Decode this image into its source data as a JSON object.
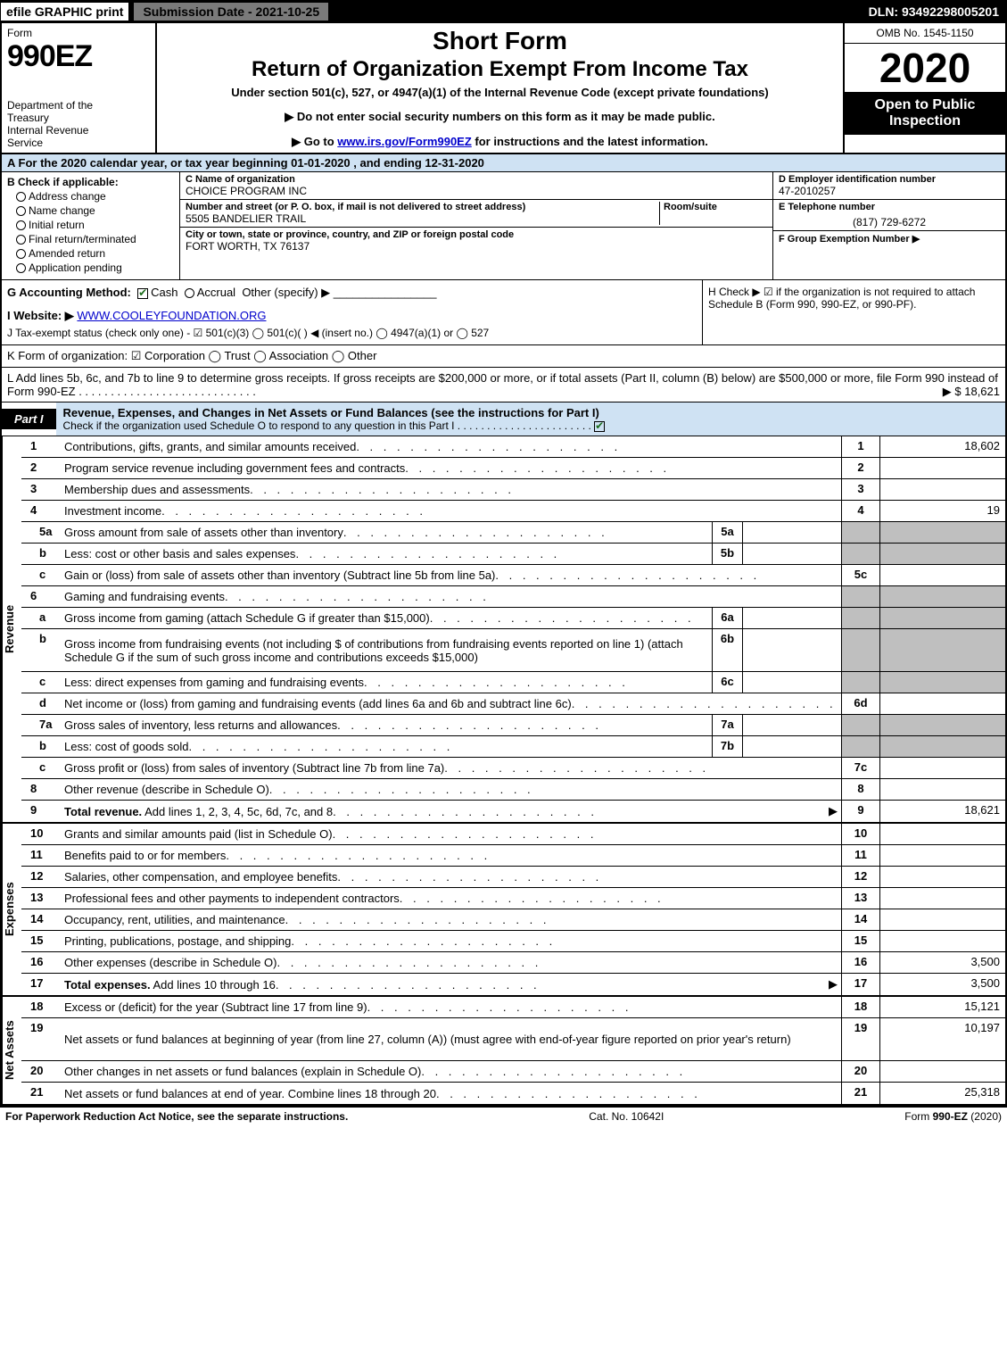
{
  "top_bar": {
    "efile": "efile GRAPHIC print",
    "submission": "Submission Date - 2021-10-25",
    "dln": "DLN: 93492298005201"
  },
  "header": {
    "form_word": "Form",
    "form_number": "990EZ",
    "dept": "Department of the Treasury\nInternal Revenue Service",
    "short_form": "Short Form",
    "return_title": "Return of Organization Exempt From Income Tax",
    "under": "Under section 501(c), 527, or 4947(a)(1) of the Internal Revenue Code (except private foundations)",
    "arrow1": "▶ Do not enter social security numbers on this form as it may be made public.",
    "arrow2_pre": "▶ Go to ",
    "arrow2_link": "www.irs.gov/Form990EZ",
    "arrow2_post": " for instructions and the latest information.",
    "omb": "OMB No. 1545-1150",
    "year": "2020",
    "open": "Open to Public Inspection"
  },
  "section_a": "A For the 2020 calendar year, or tax year beginning 01-01-2020 , and ending 12-31-2020",
  "section_b": {
    "head": "B  Check if applicable:",
    "opts": [
      "Address change",
      "Name change",
      "Initial return",
      "Final return/terminated",
      "Amended return",
      "Application pending"
    ]
  },
  "section_c": {
    "name_label": "C Name of organization",
    "name": "CHOICE PROGRAM INC",
    "street_label": "Number and street (or P. O. box, if mail is not delivered to street address)",
    "street": "5505 BANDELIER TRAIL",
    "room_label": "Room/suite",
    "city_label": "City or town, state or province, country, and ZIP or foreign postal code",
    "city": "FORT WORTH, TX  76137"
  },
  "section_d": {
    "label": "D Employer identification number",
    "value": "47-2010257"
  },
  "section_e": {
    "label": "E Telephone number",
    "value": "(817) 729-6272"
  },
  "section_f": {
    "label": "F Group Exemption Number  ▶",
    "value": ""
  },
  "section_g": {
    "label": "G Accounting Method:",
    "cash": "Cash",
    "accrual": "Accrual",
    "other": "Other (specify) ▶"
  },
  "section_h": "H  Check ▶ ☑ if the organization is not required to attach Schedule B (Form 990, 990-EZ, or 990-PF).",
  "section_i": {
    "label": "I Website: ▶",
    "link": "WWW.COOLEYFOUNDATION.ORG"
  },
  "section_j": "J Tax-exempt status (check only one) - ☑ 501(c)(3)  ◯ 501(c)(  ) ◀ (insert no.)  ◯ 4947(a)(1) or  ◯ 527",
  "section_k": "K Form of organization:  ☑ Corporation  ◯ Trust  ◯ Association  ◯ Other",
  "section_l": {
    "text": "L Add lines 5b, 6c, and 7b to line 9 to determine gross receipts. If gross receipts are $200,000 or more, or if total assets (Part II, column (B) below) are $500,000 or more, file Form 990 instead of Form 990-EZ",
    "amount": "▶ $ 18,621"
  },
  "part1": {
    "tab": "Part I",
    "title": "Revenue, Expenses, and Changes in Net Assets or Fund Balances (see the instructions for Part I)",
    "sub": "Check if the organization used Schedule O to respond to any question in this Part I"
  },
  "side_labels": {
    "revenue": "Revenue",
    "expenses": "Expenses",
    "netassets": "Net Assets"
  },
  "revenue_lines": [
    {
      "num": "1",
      "desc": "Contributions, gifts, grants, and similar amounts received",
      "rb_num": "1",
      "rb_val": "18,602"
    },
    {
      "num": "2",
      "desc": "Program service revenue including government fees and contracts",
      "rb_num": "2",
      "rb_val": ""
    },
    {
      "num": "3",
      "desc": "Membership dues and assessments",
      "rb_num": "3",
      "rb_val": ""
    },
    {
      "num": "4",
      "desc": "Investment income",
      "rb_num": "4",
      "rb_val": "19"
    },
    {
      "num": "5a",
      "sub": true,
      "desc": "Gross amount from sale of assets other than inventory",
      "mid_num": "5a",
      "mid_val": "",
      "rb_shaded": true
    },
    {
      "num": "b",
      "sub": true,
      "desc": "Less: cost or other basis and sales expenses",
      "mid_num": "5b",
      "mid_val": "",
      "rb_shaded": true
    },
    {
      "num": "c",
      "sub": true,
      "desc": "Gain or (loss) from sale of assets other than inventory (Subtract line 5b from line 5a)",
      "rb_num": "5c",
      "rb_val": ""
    },
    {
      "num": "6",
      "desc": "Gaming and fundraising events",
      "rb_shaded": true
    },
    {
      "num": "a",
      "sub": true,
      "desc": "Gross income from gaming (attach Schedule G if greater than $15,000)",
      "mid_num": "6a",
      "mid_val": "",
      "rb_shaded": true
    },
    {
      "num": "b",
      "sub": true,
      "desc": "Gross income from fundraising events (not including $                    of contributions from fundraising events reported on line 1) (attach Schedule G if the sum of such gross income and contributions exceeds $15,000)",
      "mid_num": "6b",
      "mid_val": "",
      "rb_shaded": true,
      "tall": true
    },
    {
      "num": "c",
      "sub": true,
      "desc": "Less: direct expenses from gaming and fundraising events",
      "mid_num": "6c",
      "mid_val": "",
      "rb_shaded": true
    },
    {
      "num": "d",
      "sub": true,
      "desc": "Net income or (loss) from gaming and fundraising events (add lines 6a and 6b and subtract line 6c)",
      "rb_num": "6d",
      "rb_val": ""
    },
    {
      "num": "7a",
      "sub": true,
      "desc": "Gross sales of inventory, less returns and allowances",
      "mid_num": "7a",
      "mid_val": "",
      "rb_shaded": true
    },
    {
      "num": "b",
      "sub": true,
      "desc": "Less: cost of goods sold",
      "mid_num": "7b",
      "mid_val": "",
      "rb_shaded": true
    },
    {
      "num": "c",
      "sub": true,
      "desc": "Gross profit or (loss) from sales of inventory (Subtract line 7b from line 7a)",
      "rb_num": "7c",
      "rb_val": ""
    },
    {
      "num": "8",
      "desc": "Other revenue (describe in Schedule O)",
      "rb_num": "8",
      "rb_val": ""
    },
    {
      "num": "9",
      "desc": "Total revenue. Add lines 1, 2, 3, 4, 5c, 6d, 7c, and 8",
      "bold": true,
      "arrow": true,
      "rb_num": "9",
      "rb_val": "18,621"
    }
  ],
  "expense_lines": [
    {
      "num": "10",
      "desc": "Grants and similar amounts paid (list in Schedule O)",
      "rb_num": "10",
      "rb_val": ""
    },
    {
      "num": "11",
      "desc": "Benefits paid to or for members",
      "rb_num": "11",
      "rb_val": ""
    },
    {
      "num": "12",
      "desc": "Salaries, other compensation, and employee benefits",
      "rb_num": "12",
      "rb_val": ""
    },
    {
      "num": "13",
      "desc": "Professional fees and other payments to independent contractors",
      "rb_num": "13",
      "rb_val": ""
    },
    {
      "num": "14",
      "desc": "Occupancy, rent, utilities, and maintenance",
      "rb_num": "14",
      "rb_val": ""
    },
    {
      "num": "15",
      "desc": "Printing, publications, postage, and shipping",
      "rb_num": "15",
      "rb_val": ""
    },
    {
      "num": "16",
      "desc": "Other expenses (describe in Schedule O)",
      "rb_num": "16",
      "rb_val": "3,500"
    },
    {
      "num": "17",
      "desc": "Total expenses. Add lines 10 through 16",
      "bold": true,
      "arrow": true,
      "rb_num": "17",
      "rb_val": "3,500"
    }
  ],
  "netasset_lines": [
    {
      "num": "18",
      "desc": "Excess or (deficit) for the year (Subtract line 17 from line 9)",
      "rb_num": "18",
      "rb_val": "15,121"
    },
    {
      "num": "19",
      "desc": "Net assets or fund balances at beginning of year (from line 27, column (A)) (must agree with end-of-year figure reported on prior year's return)",
      "rb_num": "19",
      "rb_val": "10,197",
      "tall": true
    },
    {
      "num": "20",
      "desc": "Other changes in net assets or fund balances (explain in Schedule O)",
      "rb_num": "20",
      "rb_val": ""
    },
    {
      "num": "21",
      "desc": "Net assets or fund balances at end of year. Combine lines 18 through 20",
      "rb_num": "21",
      "rb_val": "25,318"
    }
  ],
  "footer": {
    "left": "For Paperwork Reduction Act Notice, see the separate instructions.",
    "center": "Cat. No. 10642I",
    "right_pre": "Form ",
    "right_bold": "990-EZ",
    "right_post": " (2020)"
  },
  "colors": {
    "header_blue": "#cfe2f3",
    "shaded_gray": "#bfbfbf",
    "link_blue": "#0000cc",
    "check_green": "#1a6b1a"
  }
}
